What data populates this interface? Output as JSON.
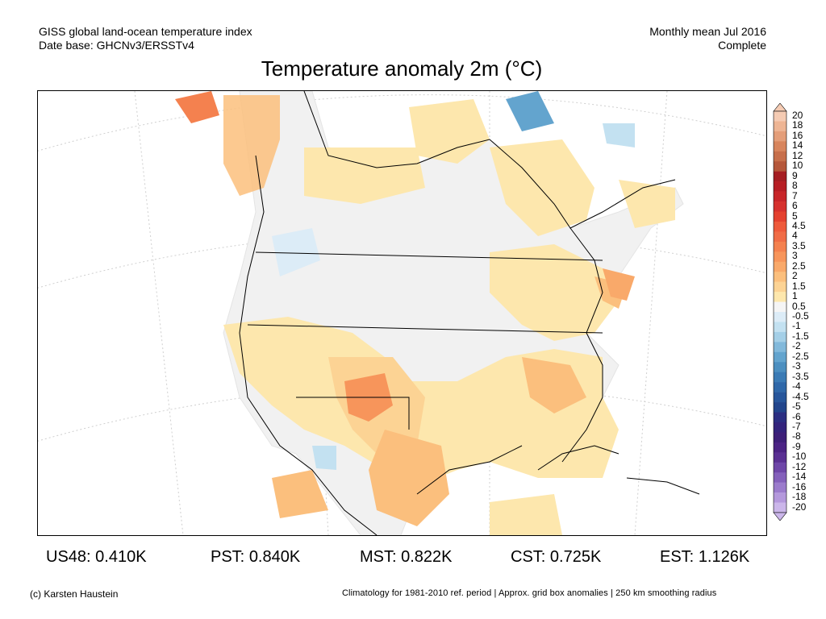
{
  "header": {
    "line1_left": "GISS global land-ocean temperature index",
    "line2_left": "Date base: GHCNv3/ERSSTv4",
    "line1_right": "Monthly mean Jul 2016",
    "line2_right": "Complete"
  },
  "title": "Temperature anomaly 2m (°C)",
  "colorbar": {
    "levels": [
      "20",
      "18",
      "16",
      "14",
      "12",
      "10",
      "9",
      "8",
      "7",
      "6",
      "5",
      "4.5",
      "4",
      "3.5",
      "3",
      "2.5",
      "2",
      "1.5",
      "1",
      "0.5",
      "-0.5",
      "-1",
      "-1.5",
      "-2",
      "-2.5",
      "-3",
      "-3.5",
      "-4",
      "-4.5",
      "-5",
      "-6",
      "-7",
      "-8",
      "-9",
      "-10",
      "-12",
      "-14",
      "-16",
      "-18",
      "-20"
    ],
    "colors": [
      "#f5cbb3",
      "#eeb594",
      "#e49e79",
      "#d8855d",
      "#c76f4b",
      "#b5573a",
      "#a51e22",
      "#b71e24",
      "#c82629",
      "#d6312e",
      "#e4412f",
      "#ee5a3b",
      "#f06c46",
      "#f4814f",
      "#f7955b",
      "#f9a96a",
      "#fbbf7d",
      "#fcd394",
      "#fde7ad",
      "#f5f5f5",
      "#dcecf7",
      "#c3e1f1",
      "#a4cfe7",
      "#82b9db",
      "#63a4ce",
      "#4c8fc0",
      "#3b7bb5",
      "#2f68a9",
      "#27569b",
      "#22458c",
      "#2b2e82",
      "#33237c",
      "#3d1f78",
      "#4b2384",
      "#5a3093",
      "#6e46a8",
      "#8460bb",
      "#9b7bcc",
      "#b498dc",
      "#cbb6ea"
    ]
  },
  "stats": [
    {
      "label": "US48:",
      "value": "0.410K"
    },
    {
      "label": "PST:",
      "value": "0.840K"
    },
    {
      "label": "MST:",
      "value": "0.822K"
    },
    {
      "label": "CST:",
      "value": "0.725K"
    },
    {
      "label": "EST:",
      "value": "1.126K"
    }
  ],
  "footer": {
    "left": "(c) Karsten Haustein",
    "right": "Climatology for 1981-2010 ref. period | Approx. grid box anomalies | 250 km smoothing radius"
  }
}
